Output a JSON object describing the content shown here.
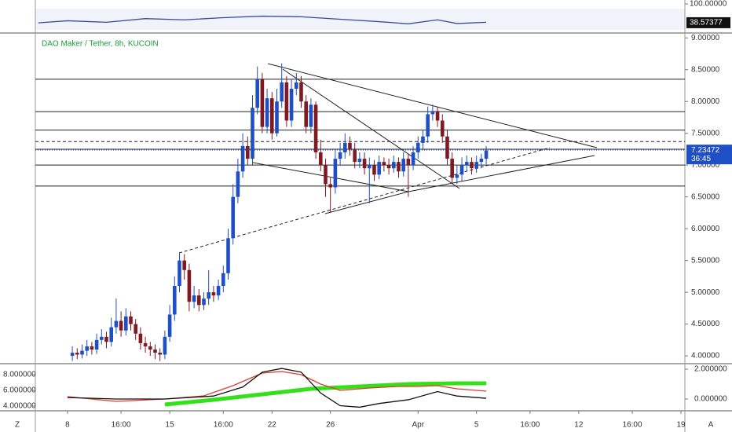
{
  "chart_data": [
    {
      "type": "line",
      "ylim": [
        5,
        112.8
      ],
      "yticks": [
        {
          "value": 100,
          "label": "100.00000"
        }
      ],
      "last_value": 38.57377,
      "series": [
        {
          "color": "#3b4a9c",
          "x": [
            -6,
            0,
            8,
            16,
            24,
            32,
            40,
            48,
            56,
            64,
            70,
            76,
            80,
            86
          ],
          "values": [
            38,
            45,
            40,
            52,
            48,
            55,
            60,
            58,
            50,
            42,
            35,
            48,
            36,
            40
          ]
        }
      ]
    },
    {
      "type": "candlestick",
      "title": "DAO Maker / Tether, 8h, KUCOIN",
      "xlim": [
        -6.6,
        126.8
      ],
      "ylim": [
        3.89,
        9.04
      ],
      "xticks": [
        {
          "value": 0,
          "label": "8"
        },
        {
          "value": 11,
          "label": "16:00"
        },
        {
          "value": 21,
          "label": "15"
        },
        {
          "value": 32,
          "label": "16:00"
        },
        {
          "value": 42,
          "label": "22"
        },
        {
          "value": 54,
          "label": "26"
        },
        {
          "value": 72,
          "label": "Apr"
        },
        {
          "value": 84,
          "label": "5"
        },
        {
          "value": 95,
          "label": "16:00"
        },
        {
          "value": 105,
          "label": "12"
        },
        {
          "value": 116,
          "label": "16:00"
        },
        {
          "value": 126,
          "label": "19"
        }
      ],
      "yticks": [
        {
          "value": 9,
          "label": "9.00000"
        },
        {
          "value": 8.5,
          "label": "8.50000"
        },
        {
          "value": 8,
          "label": "8.00000"
        },
        {
          "value": 7.5,
          "label": "7.50000"
        },
        {
          "value": 7,
          "label": "7.00000"
        },
        {
          "value": 6.5,
          "label": "6.50000"
        },
        {
          "value": 6,
          "label": "6.00000"
        },
        {
          "value": 5.5,
          "label": "5.50000"
        },
        {
          "value": 5,
          "label": "5.00000"
        },
        {
          "value": 4.5,
          "label": "4.50000"
        },
        {
          "value": 4,
          "label": "4.00000"
        }
      ],
      "up_color": "#1f4fc4",
      "down_color": "#801922",
      "levels": [
        8.35,
        7.84,
        7.55,
        7.25,
        7.0,
        6.67
      ],
      "dashed_levels": [
        7.37
      ],
      "last_price": 7.23472,
      "countdown": "36:45",
      "x": [
        1,
        2,
        3,
        4,
        5,
        6,
        7,
        8,
        9,
        10,
        11,
        12,
        13,
        14,
        15,
        16,
        17,
        18,
        19,
        20,
        21,
        22,
        23,
        24,
        25,
        26,
        27,
        28,
        29,
        30,
        31,
        32,
        33,
        34,
        35,
        36,
        37,
        38,
        39,
        40,
        41,
        42,
        43,
        44,
        45,
        46,
        47,
        48,
        49,
        50,
        51,
        52,
        53,
        54,
        55,
        56,
        57,
        58,
        59,
        60,
        61,
        62,
        63,
        64,
        65,
        66,
        67,
        68,
        69,
        70,
        71,
        72,
        73,
        74,
        75,
        76,
        77,
        78,
        79,
        80,
        81,
        82,
        83,
        84,
        85,
        86
      ],
      "open": [
        4.0,
        4.05,
        4.02,
        4.08,
        4.15,
        4.1,
        4.25,
        4.3,
        4.22,
        4.45,
        4.55,
        4.4,
        4.62,
        4.5,
        4.35,
        4.2,
        4.15,
        4.1,
        4.05,
        4.02,
        4.3,
        4.65,
        5.1,
        5.5,
        5.35,
        4.85,
        4.95,
        4.8,
        4.9,
        5.0,
        4.95,
        5.1,
        5.3,
        5.85,
        6.5,
        6.9,
        7.3,
        7.1,
        7.9,
        8.35,
        7.6,
        8.05,
        7.5,
        8.0,
        8.3,
        7.7,
        8.2,
        8.3,
        8.0,
        7.6,
        7.95,
        7.2,
        7.0,
        6.7,
        6.65,
        7.1,
        7.2,
        7.35,
        7.25,
        7.05,
        7.1,
        6.95,
        7.0,
        6.85,
        7.05,
        7.0,
        6.95,
        7.05,
        6.9,
        7.1,
        7.0,
        7.2,
        7.35,
        7.45,
        7.8,
        7.85,
        7.7,
        7.45,
        7.1,
        6.8,
        6.85,
        7.0,
        7.05,
        6.95,
        7.05,
        7.1
      ],
      "high": [
        4.15,
        4.12,
        4.18,
        4.25,
        4.22,
        4.35,
        4.42,
        4.38,
        4.6,
        4.9,
        4.7,
        4.75,
        4.7,
        4.58,
        4.45,
        4.3,
        4.22,
        4.18,
        4.12,
        4.4,
        4.8,
        5.25,
        5.62,
        5.6,
        5.45,
        5.1,
        5.05,
        5.0,
        5.35,
        5.1,
        5.2,
        5.42,
        6.0,
        6.7,
        7.1,
        7.5,
        7.45,
        8.1,
        8.55,
        8.45,
        8.2,
        8.15,
        8.2,
        8.6,
        8.4,
        8.35,
        8.45,
        8.4,
        8.1,
        8.05,
        8.0,
        7.4,
        7.1,
        6.8,
        7.25,
        7.35,
        7.5,
        7.45,
        7.35,
        7.2,
        7.2,
        7.12,
        7.08,
        7.15,
        7.12,
        7.1,
        7.15,
        7.12,
        7.2,
        7.18,
        7.3,
        7.45,
        7.55,
        7.92,
        7.95,
        7.92,
        7.8,
        7.55,
        7.2,
        7.0,
        7.12,
        7.15,
        7.12,
        7.15,
        7.18,
        7.3
      ],
      "low": [
        3.92,
        3.95,
        3.96,
        4.0,
        4.02,
        4.03,
        4.18,
        4.12,
        4.15,
        4.35,
        4.3,
        4.32,
        4.4,
        4.25,
        4.1,
        4.05,
        4.0,
        3.95,
        3.92,
        3.95,
        4.22,
        4.55,
        5.0,
        5.2,
        4.7,
        4.75,
        4.7,
        4.72,
        4.8,
        4.85,
        4.88,
        5.0,
        5.2,
        5.75,
        6.4,
        6.8,
        7.0,
        7.0,
        7.8,
        7.5,
        7.5,
        7.4,
        7.45,
        7.9,
        7.6,
        7.6,
        8.1,
        7.9,
        7.5,
        7.5,
        7.1,
        6.9,
        6.5,
        6.25,
        6.55,
        7.0,
        7.1,
        7.15,
        6.95,
        6.95,
        6.85,
        6.4,
        6.75,
        6.78,
        6.9,
        6.85,
        6.88,
        6.8,
        6.82,
        6.5,
        6.92,
        7.1,
        7.25,
        7.35,
        7.7,
        7.6,
        7.35,
        7.0,
        6.7,
        6.7,
        6.75,
        6.9,
        6.85,
        6.88,
        6.95,
        7.0
      ],
      "close": [
        4.05,
        4.02,
        4.08,
        4.15,
        4.1,
        4.25,
        4.3,
        4.22,
        4.45,
        4.55,
        4.4,
        4.62,
        4.5,
        4.35,
        4.2,
        4.15,
        4.1,
        4.05,
        4.02,
        4.3,
        4.65,
        5.1,
        5.5,
        5.35,
        4.85,
        4.95,
        4.8,
        4.9,
        5.0,
        4.95,
        5.1,
        5.3,
        5.85,
        6.5,
        6.9,
        7.3,
        7.1,
        7.9,
        8.35,
        7.6,
        8.05,
        7.5,
        8.0,
        8.3,
        7.7,
        8.2,
        8.3,
        8.0,
        7.6,
        7.95,
        7.2,
        7.0,
        6.7,
        6.65,
        7.1,
        7.2,
        7.35,
        7.25,
        7.05,
        7.1,
        6.95,
        7.0,
        6.85,
        7.05,
        7.0,
        6.95,
        7.05,
        6.9,
        7.1,
        7.0,
        7.2,
        7.35,
        7.45,
        7.8,
        7.85,
        7.7,
        7.45,
        7.1,
        6.8,
        6.85,
        7.0,
        7.05,
        6.95,
        7.05,
        7.1,
        7.23
      ]
    },
    {
      "type": "line",
      "ylim": [
        3.5,
        9.3
      ],
      "yticks": [
        {
          "value": 8,
          "label": "8.000000"
        },
        {
          "value": 6,
          "label": "6.000000"
        },
        {
          "value": 4,
          "label": "4.000000"
        }
      ],
      "y2lim": [
        -0.737,
        2.316
      ],
      "y2ticks": [
        {
          "value": 2,
          "label": "2.000000"
        },
        {
          "value": 0,
          "label": "0.000000"
        }
      ],
      "series": [
        {
          "color": "#33e01a",
          "x": [
            20,
            30,
            40,
            50,
            60,
            70,
            80,
            86
          ],
          "values": [
            4.2,
            4.8,
            5.5,
            6.2,
            6.5,
            6.8,
            6.9,
            6.9
          ]
        },
        {
          "color": "#e03a2e",
          "x": [
            0,
            10,
            20,
            28,
            34,
            40,
            44,
            48,
            52,
            56,
            62,
            68,
            72,
            76,
            80,
            86
          ],
          "values": [
            5.2,
            4.6,
            4.9,
            5.3,
            6.6,
            8.2,
            8.4,
            8.0,
            6.8,
            6.0,
            6.3,
            6.5,
            6.5,
            6.6,
            6.2,
            5.9
          ]
        },
        {
          "color": "#111111",
          "axis": "y2",
          "x": [
            0,
            10,
            20,
            30,
            36,
            40,
            44,
            48,
            52,
            56,
            60,
            64,
            70,
            76,
            80,
            86
          ],
          "values": [
            0.1,
            0.0,
            0.0,
            0.2,
            0.8,
            1.8,
            2.05,
            1.8,
            0.4,
            -0.45,
            -0.55,
            -0.3,
            -0.05,
            0.5,
            0.2,
            0.05
          ]
        }
      ]
    }
  ],
  "toolbar": {
    "left": "Z",
    "right": "A"
  }
}
